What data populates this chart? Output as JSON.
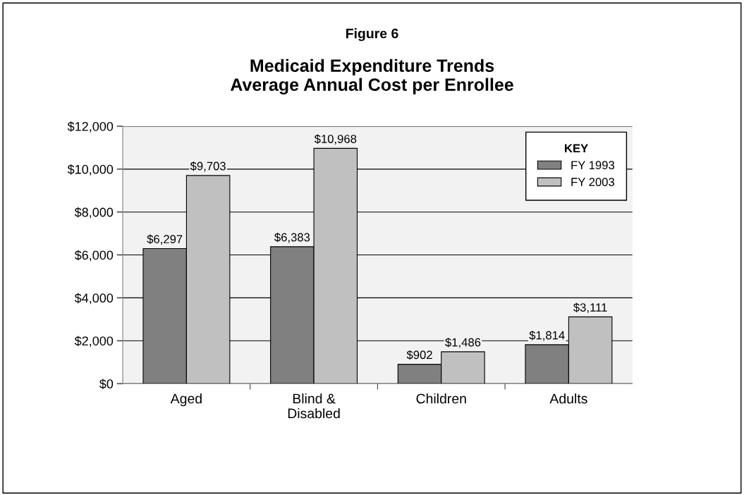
{
  "chart_data": {
    "type": "bar",
    "title": "Figure 6",
    "subtitle": "Medicaid Expenditure Trends\nAverage Annual Cost per Enrollee",
    "categories": [
      "Aged",
      "Blind &\nDisabled",
      "Children",
      "Adults"
    ],
    "series": [
      {
        "name": "FY 1993",
        "color": "#808080",
        "values": [
          6297,
          6383,
          902,
          1814
        ],
        "value_labels": [
          "$6,297",
          "$6,383",
          "$902",
          "$1,814"
        ]
      },
      {
        "name": "FY 2003",
        "color": "#c0c0c0",
        "values": [
          9703,
          10968,
          1486,
          3111
        ],
        "value_labels": [
          "$9,703",
          "$10,968",
          "$1,486",
          "$3,111"
        ]
      }
    ],
    "ylim": [
      0,
      12000
    ],
    "yticks": [
      {
        "value": 0,
        "label": "$0"
      },
      {
        "value": 2000,
        "label": "$2,000"
      },
      {
        "value": 4000,
        "label": "$4,000"
      },
      {
        "value": 6000,
        "label": "$6,000"
      },
      {
        "value": 8000,
        "label": "$8,000"
      },
      {
        "value": 10000,
        "label": "$10,000"
      },
      {
        "value": 12000,
        "label": "$12,000"
      }
    ],
    "grid": "y",
    "legend": "top right",
    "legend_title": "KEY"
  }
}
